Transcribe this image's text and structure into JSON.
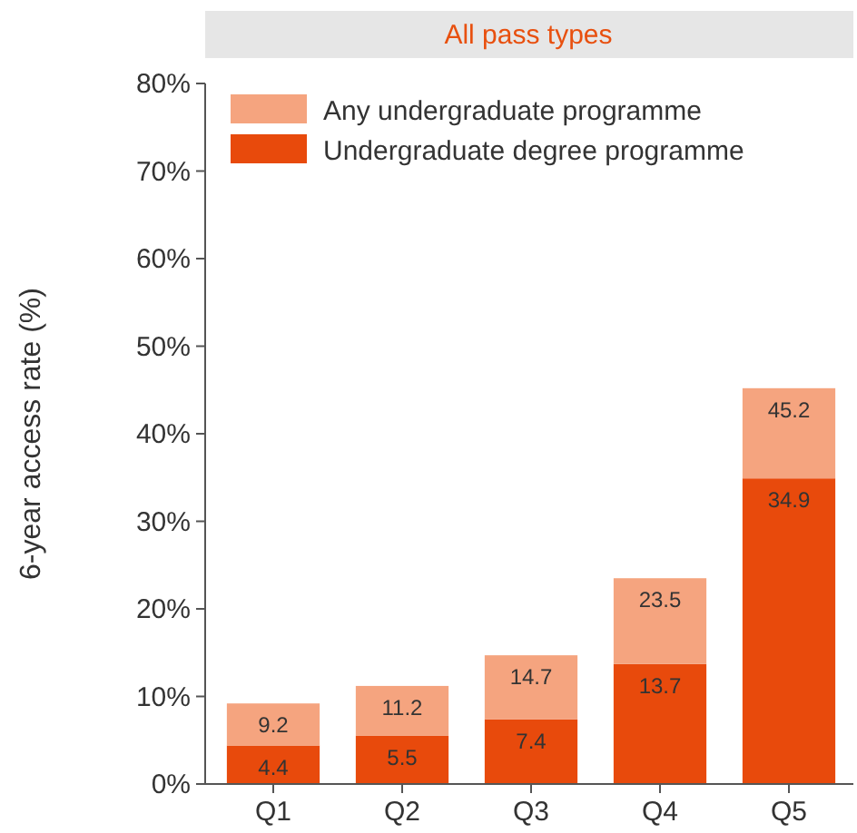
{
  "chart_data": {
    "type": "bar",
    "title": "All pass types",
    "ylabel": "6-year access rate (%)",
    "categories": [
      "Q1",
      "Q2",
      "Q3",
      "Q4",
      "Q5"
    ],
    "stacked": true,
    "series": [
      {
        "name": "Undergraduate degree programme",
        "color": "#e84a0c",
        "values": [
          4.4,
          5.5,
          7.4,
          13.7,
          34.9
        ],
        "value_labels": [
          "4.4",
          "5.5",
          "7.4",
          "13.7",
          "34.9"
        ]
      },
      {
        "name": "Any undergraduate programme",
        "color": "#f5a47f",
        "values": [
          4.8,
          5.7,
          7.3,
          9.8,
          10.3
        ]
      }
    ],
    "totals": [
      "9.2",
      "11.2",
      "14.7",
      "23.5",
      "45.2"
    ],
    "ylim": [
      0,
      80
    ],
    "yticks": [
      {
        "value": 0,
        "label": "0%"
      },
      {
        "value": 10,
        "label": "10%"
      },
      {
        "value": 20,
        "label": "20%"
      },
      {
        "value": 30,
        "label": "30%"
      },
      {
        "value": 40,
        "label": "40%"
      },
      {
        "value": 50,
        "label": "50%"
      },
      {
        "value": 60,
        "label": "60%"
      },
      {
        "value": 70,
        "label": "70%"
      },
      {
        "value": 80,
        "label": "80%"
      }
    ],
    "grid": false,
    "legend": "top left"
  }
}
